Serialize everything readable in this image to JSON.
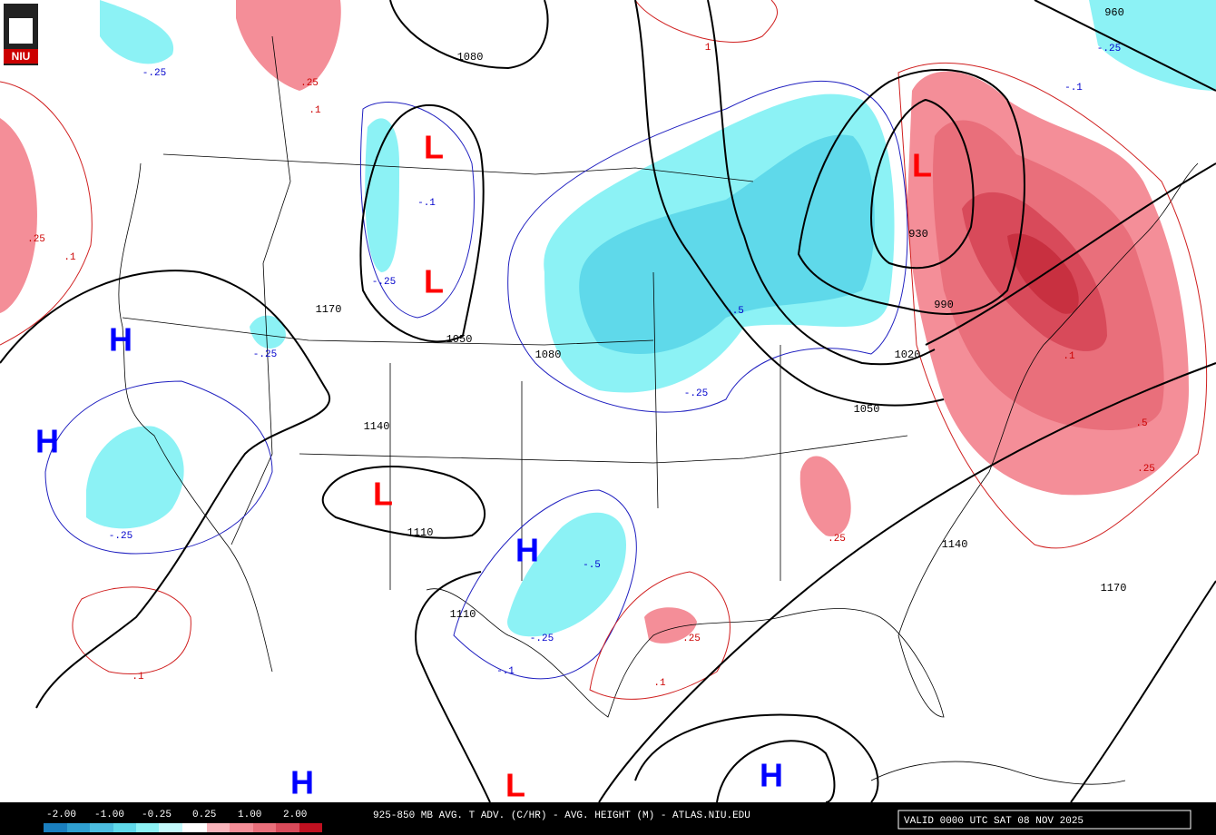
{
  "logo": "NIU",
  "title": "925-850 MB AVG. T ADV. (C/HR) - AVG. HEIGHT (M) - ATLAS.NIU.EDU",
  "valid": "VALID 0000 UTC SAT 08 NOV 2025",
  "legend": [
    "-2.00",
    "-1.00",
    "-0.25",
    "0.25",
    "1.00",
    "2.00"
  ],
  "lows": [
    "L",
    "L",
    "L",
    "L",
    "L"
  ],
  "highs": [
    "H",
    "H",
    "H",
    "H",
    "H"
  ],
  "height_labels": [
    "1080",
    "1170",
    "1050",
    "1080",
    "1140",
    "1110",
    "1110",
    "930",
    "990",
    "1020",
    "1050",
    "1140",
    "1170",
    "960"
  ],
  "warm_labels": [
    ".25",
    ".1",
    ".25",
    ".1",
    "1",
    ".1",
    ".25",
    ".1",
    ".5",
    ".25",
    ".1",
    ".25"
  ],
  "cold_labels": [
    "-.25",
    "-.1",
    "-.25",
    "-.25",
    "-.25",
    "-.5",
    "-.25",
    "-.5",
    "-.25",
    "-.1",
    "-.1",
    "-.25"
  ]
}
